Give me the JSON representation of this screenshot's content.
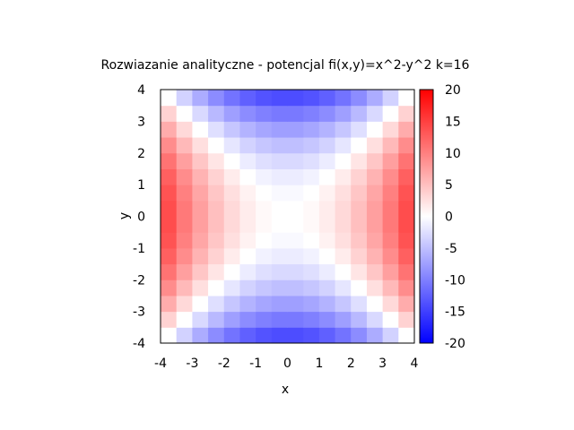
{
  "chart_data": {
    "type": "heatmap",
    "title": "Rozwiazanie analityczne - potencjal fi(x,y)=x^2-y^2 k=16",
    "xlabel": "x",
    "ylabel": "y",
    "formula": "x^2-y^2",
    "xlim": [
      -4,
      4
    ],
    "ylim": [
      -4,
      4
    ],
    "grid_n": 16,
    "xticks": [
      "-4",
      "-3",
      "-2",
      "-1",
      "0",
      "1",
      "2",
      "3",
      "4"
    ],
    "yticks": [
      "-4",
      "-3",
      "-2",
      "-1",
      "0",
      "1",
      "2",
      "3",
      "4"
    ],
    "colorbar": {
      "range": [
        -20,
        20
      ],
      "ticks": [
        "-20",
        "-15",
        "-10",
        "-5",
        "0",
        "5",
        "10",
        "15",
        "20"
      ],
      "colors": {
        "low": "#0000ff",
        "mid": "#ffffff",
        "high": "#ff0000"
      }
    },
    "grid": false,
    "legend": "none"
  }
}
